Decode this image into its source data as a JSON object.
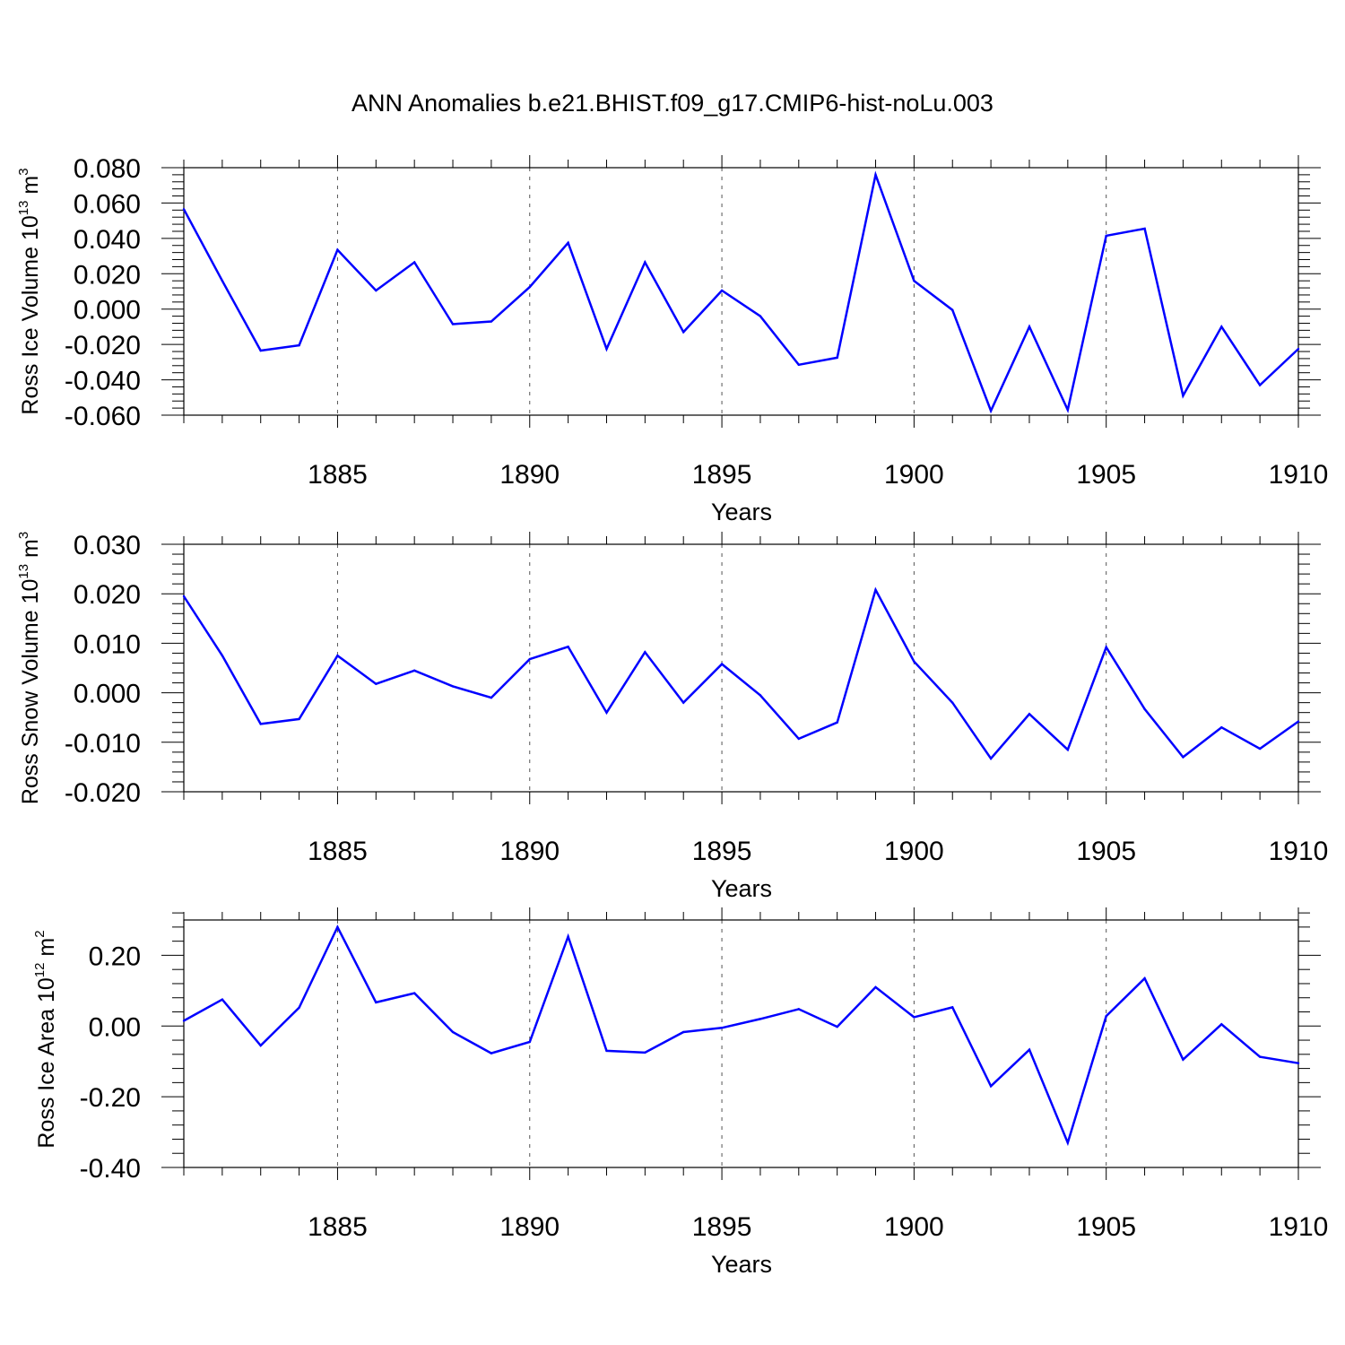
{
  "chart_data": [
    {
      "type": "line",
      "title": "ANN Anomalies b.e21.BHIST.f09_g17.CMIP6-hist-noLu.003",
      "xlabel": "Years",
      "ylabel": "Ross Ice Volume 10",
      "ylabel_exp": "13",
      "ylabel_unit": " m",
      "ylabel_unit_exp": "3",
      "xlim": [
        1881,
        1910
      ],
      "ylim": [
        -0.06,
        0.08
      ],
      "x_ticks": [
        1885,
        1890,
        1895,
        1900,
        1905,
        1910
      ],
      "y_ticks": [
        -0.06,
        -0.04,
        -0.02,
        0.0,
        0.02,
        0.04,
        0.06,
        0.08
      ],
      "y_tick_labels": [
        "-0.060",
        "-0.040",
        "-0.020",
        "0.000",
        "0.020",
        "0.040",
        "0.060",
        "0.080"
      ],
      "grid": "dashed vertical at major x ticks",
      "color": "#0000ff",
      "x": [
        1881,
        1882,
        1883,
        1884,
        1885,
        1886,
        1887,
        1888,
        1889,
        1890,
        1891,
        1892,
        1893,
        1894,
        1895,
        1896,
        1897,
        1898,
        1899,
        1900,
        1901,
        1902,
        1903,
        1904,
        1905,
        1906,
        1907,
        1908,
        1909,
        1910
      ],
      "values": [
        0.0565,
        0.016,
        -0.0235,
        -0.0205,
        0.0335,
        0.0105,
        0.0265,
        -0.0085,
        -0.007,
        0.0125,
        0.0375,
        -0.0225,
        0.0265,
        -0.013,
        0.0105,
        -0.004,
        -0.0315,
        -0.0275,
        0.076,
        0.016,
        -0.0005,
        -0.0575,
        -0.01,
        -0.057,
        0.0415,
        0.0455,
        -0.049,
        -0.01,
        -0.043,
        -0.0225
      ]
    },
    {
      "type": "line",
      "xlabel": "Years",
      "ylabel": "Ross Snow Volume 10",
      "ylabel_exp": "13",
      "ylabel_unit": " m",
      "ylabel_unit_exp": "3",
      "xlim": [
        1881,
        1910
      ],
      "ylim": [
        -0.02,
        0.03
      ],
      "x_ticks": [
        1885,
        1890,
        1895,
        1900,
        1905,
        1910
      ],
      "y_ticks": [
        -0.02,
        -0.01,
        0.0,
        0.01,
        0.02,
        0.03
      ],
      "y_tick_labels": [
        "-0.020",
        "-0.010",
        "0.000",
        "0.010",
        "0.020",
        "0.030"
      ],
      "grid": "dashed vertical at major x ticks",
      "color": "#0000ff",
      "x": [
        1881,
        1882,
        1883,
        1884,
        1885,
        1886,
        1887,
        1888,
        1889,
        1890,
        1891,
        1892,
        1893,
        1894,
        1895,
        1896,
        1897,
        1898,
        1899,
        1900,
        1901,
        1902,
        1903,
        1904,
        1905,
        1906,
        1907,
        1908,
        1909,
        1910
      ],
      "values": [
        0.0195,
        0.0075,
        -0.0063,
        -0.0053,
        0.0075,
        0.0018,
        0.0045,
        0.0013,
        -0.001,
        0.0068,
        0.0093,
        -0.004,
        0.0082,
        -0.002,
        0.0058,
        -0.0005,
        -0.0093,
        -0.006,
        0.0208,
        0.0063,
        -0.002,
        -0.0133,
        -0.0043,
        -0.0115,
        0.0092,
        -0.0033,
        -0.013,
        -0.007,
        -0.0113,
        -0.0058
      ]
    },
    {
      "type": "line",
      "xlabel": "Years",
      "ylabel": "Ross Ice Area 10",
      "ylabel_exp": "12",
      "ylabel_unit": " m",
      "ylabel_unit_exp": "2",
      "xlim": [
        1881,
        1910
      ],
      "ylim": [
        -0.4,
        0.3
      ],
      "x_ticks": [
        1885,
        1890,
        1895,
        1900,
        1905,
        1910
      ],
      "y_ticks": [
        -0.4,
        -0.2,
        0.0,
        0.2
      ],
      "y_tick_labels": [
        "-0.40",
        "-0.20",
        "0.00",
        "0.20"
      ],
      "grid": "dashed vertical at major x ticks",
      "color": "#0000ff",
      "x": [
        1881,
        1882,
        1883,
        1884,
        1885,
        1886,
        1887,
        1888,
        1889,
        1890,
        1891,
        1892,
        1893,
        1894,
        1895,
        1896,
        1897,
        1898,
        1899,
        1900,
        1901,
        1902,
        1903,
        1904,
        1905,
        1906,
        1907,
        1908,
        1909,
        1910
      ],
      "values": [
        0.015,
        0.075,
        -0.055,
        0.052,
        0.28,
        0.067,
        0.093,
        -0.017,
        -0.077,
        -0.045,
        0.253,
        -0.07,
        -0.075,
        -0.017,
        -0.005,
        0.02,
        0.048,
        -0.002,
        0.11,
        0.025,
        0.053,
        -0.17,
        -0.067,
        -0.33,
        0.028,
        0.135,
        -0.095,
        0.005,
        -0.087,
        -0.105
      ]
    }
  ]
}
